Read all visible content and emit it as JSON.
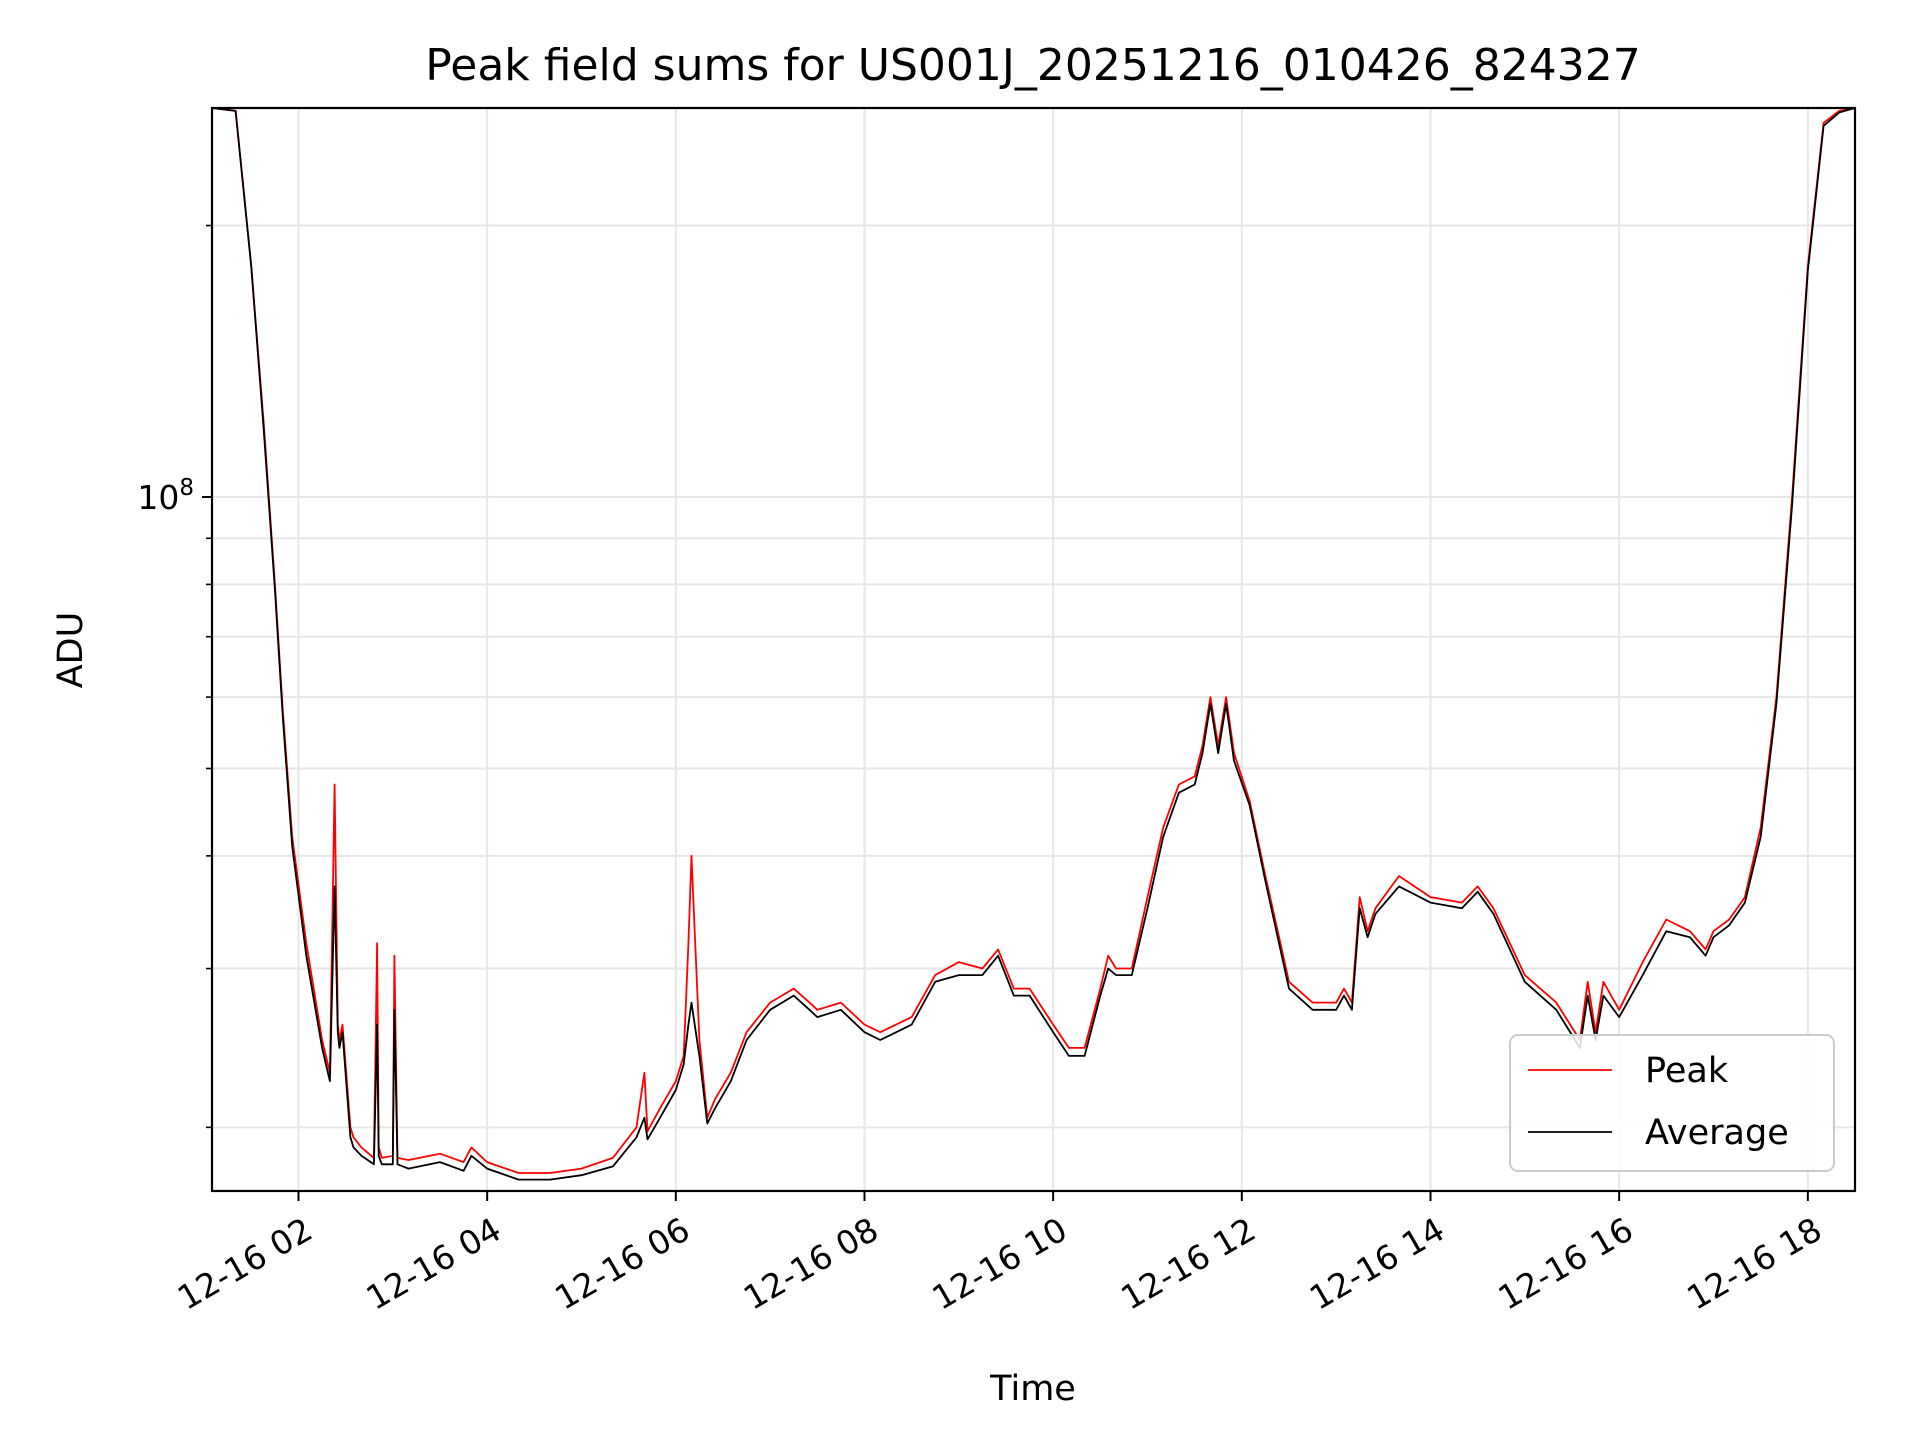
{
  "chart_data": {
    "type": "line",
    "title": "Peak field sums for US001J_20251216_010426_824327",
    "xlabel": "Time",
    "ylabel": "ADU",
    "y_scale": "log",
    "grid": true,
    "legend_position": "lower-right",
    "xlim": [
      "2025-12-16 01:05",
      "2025-12-16 18:30"
    ],
    "ylim": [
      17000000,
      270000000
    ],
    "x_ticks": [
      {
        "time": "2025-12-16 02:00",
        "label": "12-16 02"
      },
      {
        "time": "2025-12-16 04:00",
        "label": "12-16 04"
      },
      {
        "time": "2025-12-16 06:00",
        "label": "12-16 06"
      },
      {
        "time": "2025-12-16 08:00",
        "label": "12-16 08"
      },
      {
        "time": "2025-12-16 10:00",
        "label": "12-16 10"
      },
      {
        "time": "2025-12-16 12:00",
        "label": "12-16 12"
      },
      {
        "time": "2025-12-16 14:00",
        "label": "12-16 14"
      },
      {
        "time": "2025-12-16 16:00",
        "label": "12-16 16"
      },
      {
        "time": "2025-12-16 18:00",
        "label": "12-16 18"
      }
    ],
    "y_ticks_major": [
      {
        "value": 100000000,
        "label": "10^8"
      }
    ],
    "y_ticks_minor": [
      20000000,
      30000000,
      40000000,
      50000000,
      60000000,
      70000000,
      80000000,
      90000000,
      200000000
    ],
    "series": [
      {
        "name": "Peak",
        "color": "#ff0000",
        "x": [
          "2025-12-16 01:05",
          "2025-12-16 01:20",
          "2025-12-16 01:30",
          "2025-12-16 01:38",
          "2025-12-16 01:45",
          "2025-12-16 01:50",
          "2025-12-16 01:56",
          "2025-12-16 02:05",
          "2025-12-16 02:15",
          "2025-12-16 02:20",
          "2025-12-16 02:23",
          "2025-12-16 02:25",
          "2025-12-16 02:26",
          "2025-12-16 02:28",
          "2025-12-16 02:33",
          "2025-12-16 02:35",
          "2025-12-16 02:40",
          "2025-12-16 02:48",
          "2025-12-16 02:50",
          "2025-12-16 02:51",
          "2025-12-16 02:53",
          "2025-12-16 03:00",
          "2025-12-16 03:01",
          "2025-12-16 03:03",
          "2025-12-16 03:10",
          "2025-12-16 03:30",
          "2025-12-16 03:45",
          "2025-12-16 03:50",
          "2025-12-16 04:00",
          "2025-12-16 04:20",
          "2025-12-16 04:40",
          "2025-12-16 05:00",
          "2025-12-16 05:20",
          "2025-12-16 05:35",
          "2025-12-16 05:40",
          "2025-12-16 05:42",
          "2025-12-16 05:50",
          "2025-12-16 06:00",
          "2025-12-16 06:05",
          "2025-12-16 06:08",
          "2025-12-16 06:10",
          "2025-12-16 06:12",
          "2025-12-16 06:15",
          "2025-12-16 06:20",
          "2025-12-16 06:25",
          "2025-12-16 06:35",
          "2025-12-16 06:45",
          "2025-12-16 07:00",
          "2025-12-16 07:15",
          "2025-12-16 07:25",
          "2025-12-16 07:30",
          "2025-12-16 07:45",
          "2025-12-16 08:00",
          "2025-12-16 08:10",
          "2025-12-16 08:30",
          "2025-12-16 08:45",
          "2025-12-16 09:00",
          "2025-12-16 09:15",
          "2025-12-16 09:25",
          "2025-12-16 09:35",
          "2025-12-16 09:45",
          "2025-12-16 10:00",
          "2025-12-16 10:10",
          "2025-12-16 10:20",
          "2025-12-16 10:30",
          "2025-12-16 10:35",
          "2025-12-16 10:40",
          "2025-12-16 10:50",
          "2025-12-16 11:00",
          "2025-12-16 11:10",
          "2025-12-16 11:20",
          "2025-12-16 11:30",
          "2025-12-16 11:35",
          "2025-12-16 11:40",
          "2025-12-16 11:45",
          "2025-12-16 11:50",
          "2025-12-16 11:55",
          "2025-12-16 12:05",
          "2025-12-16 12:15",
          "2025-12-16 12:30",
          "2025-12-16 12:45",
          "2025-12-16 13:00",
          "2025-12-16 13:05",
          "2025-12-16 13:10",
          "2025-12-16 13:15",
          "2025-12-16 13:20",
          "2025-12-16 13:25",
          "2025-12-16 13:40",
          "2025-12-16 14:00",
          "2025-12-16 14:20",
          "2025-12-16 14:30",
          "2025-12-16 14:40",
          "2025-12-16 15:00",
          "2025-12-16 15:20",
          "2025-12-16 15:35",
          "2025-12-16 15:40",
          "2025-12-16 15:45",
          "2025-12-16 15:50",
          "2025-12-16 16:00",
          "2025-12-16 16:15",
          "2025-12-16 16:30",
          "2025-12-16 16:45",
          "2025-12-16 16:55",
          "2025-12-16 17:00",
          "2025-12-16 17:10",
          "2025-12-16 17:20",
          "2025-12-16 17:30",
          "2025-12-16 17:40",
          "2025-12-16 17:50",
          "2025-12-16 18:00",
          "2025-12-16 18:10",
          "2025-12-16 18:20",
          "2025-12-16 18:30"
        ],
        "y": [
          270000000,
          268000000,
          180000000,
          120000000,
          80000000,
          58000000,
          42000000,
          32000000,
          25000000,
          23000000,
          48000000,
          26000000,
          25000000,
          26000000,
          20000000,
          19500000,
          19000000,
          18500000,
          32000000,
          19000000,
          18500000,
          18600000,
          31000000,
          18500000,
          18400000,
          18700000,
          18300000,
          19000000,
          18300000,
          17800000,
          17800000,
          18000000,
          18500000,
          20000000,
          23000000,
          19800000,
          21000000,
          22500000,
          24000000,
          32000000,
          40000000,
          33000000,
          25000000,
          20500000,
          21500000,
          23000000,
          25500000,
          27500000,
          28500000,
          27500000,
          27000000,
          27500000,
          26000000,
          25500000,
          26500000,
          29500000,
          30500000,
          30000000,
          31500000,
          28500000,
          28500000,
          26000000,
          24500000,
          24500000,
          28500000,
          31000000,
          30000000,
          30000000,
          36000000,
          43000000,
          48000000,
          49000000,
          53000000,
          60000000,
          53000000,
          60000000,
          52000000,
          46000000,
          38000000,
          29000000,
          27500000,
          27500000,
          28500000,
          27500000,
          36000000,
          33000000,
          35000000,
          38000000,
          36000000,
          35500000,
          37000000,
          35000000,
          29500000,
          27500000,
          25000000,
          29000000,
          25500000,
          29000000,
          27000000,
          30500000,
          34000000,
          33000000,
          31500000,
          33000000,
          34000000,
          36000000,
          43000000,
          60000000,
          100000000,
          180000000,
          260000000,
          268000000,
          270000000
        ]
      },
      {
        "name": "Average",
        "color": "#000000",
        "x": [
          "2025-12-16 01:05",
          "2025-12-16 01:20",
          "2025-12-16 01:30",
          "2025-12-16 01:38",
          "2025-12-16 01:45",
          "2025-12-16 01:50",
          "2025-12-16 01:56",
          "2025-12-16 02:05",
          "2025-12-16 02:15",
          "2025-12-16 02:20",
          "2025-12-16 02:23",
          "2025-12-16 02:25",
          "2025-12-16 02:26",
          "2025-12-16 02:28",
          "2025-12-16 02:33",
          "2025-12-16 02:35",
          "2025-12-16 02:40",
          "2025-12-16 02:48",
          "2025-12-16 02:50",
          "2025-12-16 02:51",
          "2025-12-16 02:53",
          "2025-12-16 03:00",
          "2025-12-16 03:01",
          "2025-12-16 03:03",
          "2025-12-16 03:10",
          "2025-12-16 03:30",
          "2025-12-16 03:45",
          "2025-12-16 03:50",
          "2025-12-16 04:00",
          "2025-12-16 04:20",
          "2025-12-16 04:40",
          "2025-12-16 05:00",
          "2025-12-16 05:20",
          "2025-12-16 05:35",
          "2025-12-16 05:40",
          "2025-12-16 05:42",
          "2025-12-16 05:50",
          "2025-12-16 06:00",
          "2025-12-16 06:05",
          "2025-12-16 06:08",
          "2025-12-16 06:10",
          "2025-12-16 06:12",
          "2025-12-16 06:15",
          "2025-12-16 06:20",
          "2025-12-16 06:25",
          "2025-12-16 06:35",
          "2025-12-16 06:45",
          "2025-12-16 07:00",
          "2025-12-16 07:15",
          "2025-12-16 07:25",
          "2025-12-16 07:30",
          "2025-12-16 07:45",
          "2025-12-16 08:00",
          "2025-12-16 08:10",
          "2025-12-16 08:30",
          "2025-12-16 08:45",
          "2025-12-16 09:00",
          "2025-12-16 09:15",
          "2025-12-16 09:25",
          "2025-12-16 09:35",
          "2025-12-16 09:45",
          "2025-12-16 10:00",
          "2025-12-16 10:10",
          "2025-12-16 10:20",
          "2025-12-16 10:30",
          "2025-12-16 10:35",
          "2025-12-16 10:40",
          "2025-12-16 10:50",
          "2025-12-16 11:00",
          "2025-12-16 11:10",
          "2025-12-16 11:20",
          "2025-12-16 11:30",
          "2025-12-16 11:35",
          "2025-12-16 11:40",
          "2025-12-16 11:45",
          "2025-12-16 11:50",
          "2025-12-16 11:55",
          "2025-12-16 12:05",
          "2025-12-16 12:15",
          "2025-12-16 12:30",
          "2025-12-16 12:45",
          "2025-12-16 13:00",
          "2025-12-16 13:05",
          "2025-12-16 13:10",
          "2025-12-16 13:15",
          "2025-12-16 13:20",
          "2025-12-16 13:25",
          "2025-12-16 13:40",
          "2025-12-16 14:00",
          "2025-12-16 14:20",
          "2025-12-16 14:30",
          "2025-12-16 14:40",
          "2025-12-16 15:00",
          "2025-12-16 15:20",
          "2025-12-16 15:35",
          "2025-12-16 15:40",
          "2025-12-16 15:45",
          "2025-12-16 15:50",
          "2025-12-16 16:00",
          "2025-12-16 16:15",
          "2025-12-16 16:30",
          "2025-12-16 16:45",
          "2025-12-16 16:55",
          "2025-12-16 17:00",
          "2025-12-16 17:10",
          "2025-12-16 17:20",
          "2025-12-16 17:30",
          "2025-12-16 17:40",
          "2025-12-16 17:50",
          "2025-12-16 18:00",
          "2025-12-16 18:10",
          "2025-12-16 18:20",
          "2025-12-16 18:30"
        ],
        "y": [
          270000000,
          268000000,
          180000000,
          118000000,
          79000000,
          57000000,
          41000000,
          31000000,
          24500000,
          22500000,
          37000000,
          25500000,
          24500000,
          25500000,
          19500000,
          19000000,
          18600000,
          18200000,
          26000000,
          18600000,
          18200000,
          18200000,
          27000000,
          18200000,
          18000000,
          18300000,
          17900000,
          18600000,
          18000000,
          17500000,
          17500000,
          17700000,
          18100000,
          19500000,
          20500000,
          19400000,
          20500000,
          22000000,
          23500000,
          26000000,
          27500000,
          26000000,
          24000000,
          20200000,
          21000000,
          22500000,
          25000000,
          27000000,
          28000000,
          27000000,
          26500000,
          27000000,
          25500000,
          25000000,
          26000000,
          29000000,
          29500000,
          29500000,
          31000000,
          28000000,
          28000000,
          25500000,
          24000000,
          24000000,
          28000000,
          30000000,
          29500000,
          29500000,
          35000000,
          42000000,
          47000000,
          48000000,
          52000000,
          59000000,
          52000000,
          59000000,
          51000000,
          45500000,
          37500000,
          28500000,
          27000000,
          27000000,
          28000000,
          27000000,
          35000000,
          32500000,
          34500000,
          37000000,
          35500000,
          35000000,
          36500000,
          34500000,
          29000000,
          27000000,
          24500000,
          28000000,
          25000000,
          28000000,
          26500000,
          29500000,
          33000000,
          32500000,
          31000000,
          32500000,
          33500000,
          35500000,
          42000000,
          59000000,
          98000000,
          178000000,
          258000000,
          267000000,
          270000000
        ]
      }
    ]
  }
}
